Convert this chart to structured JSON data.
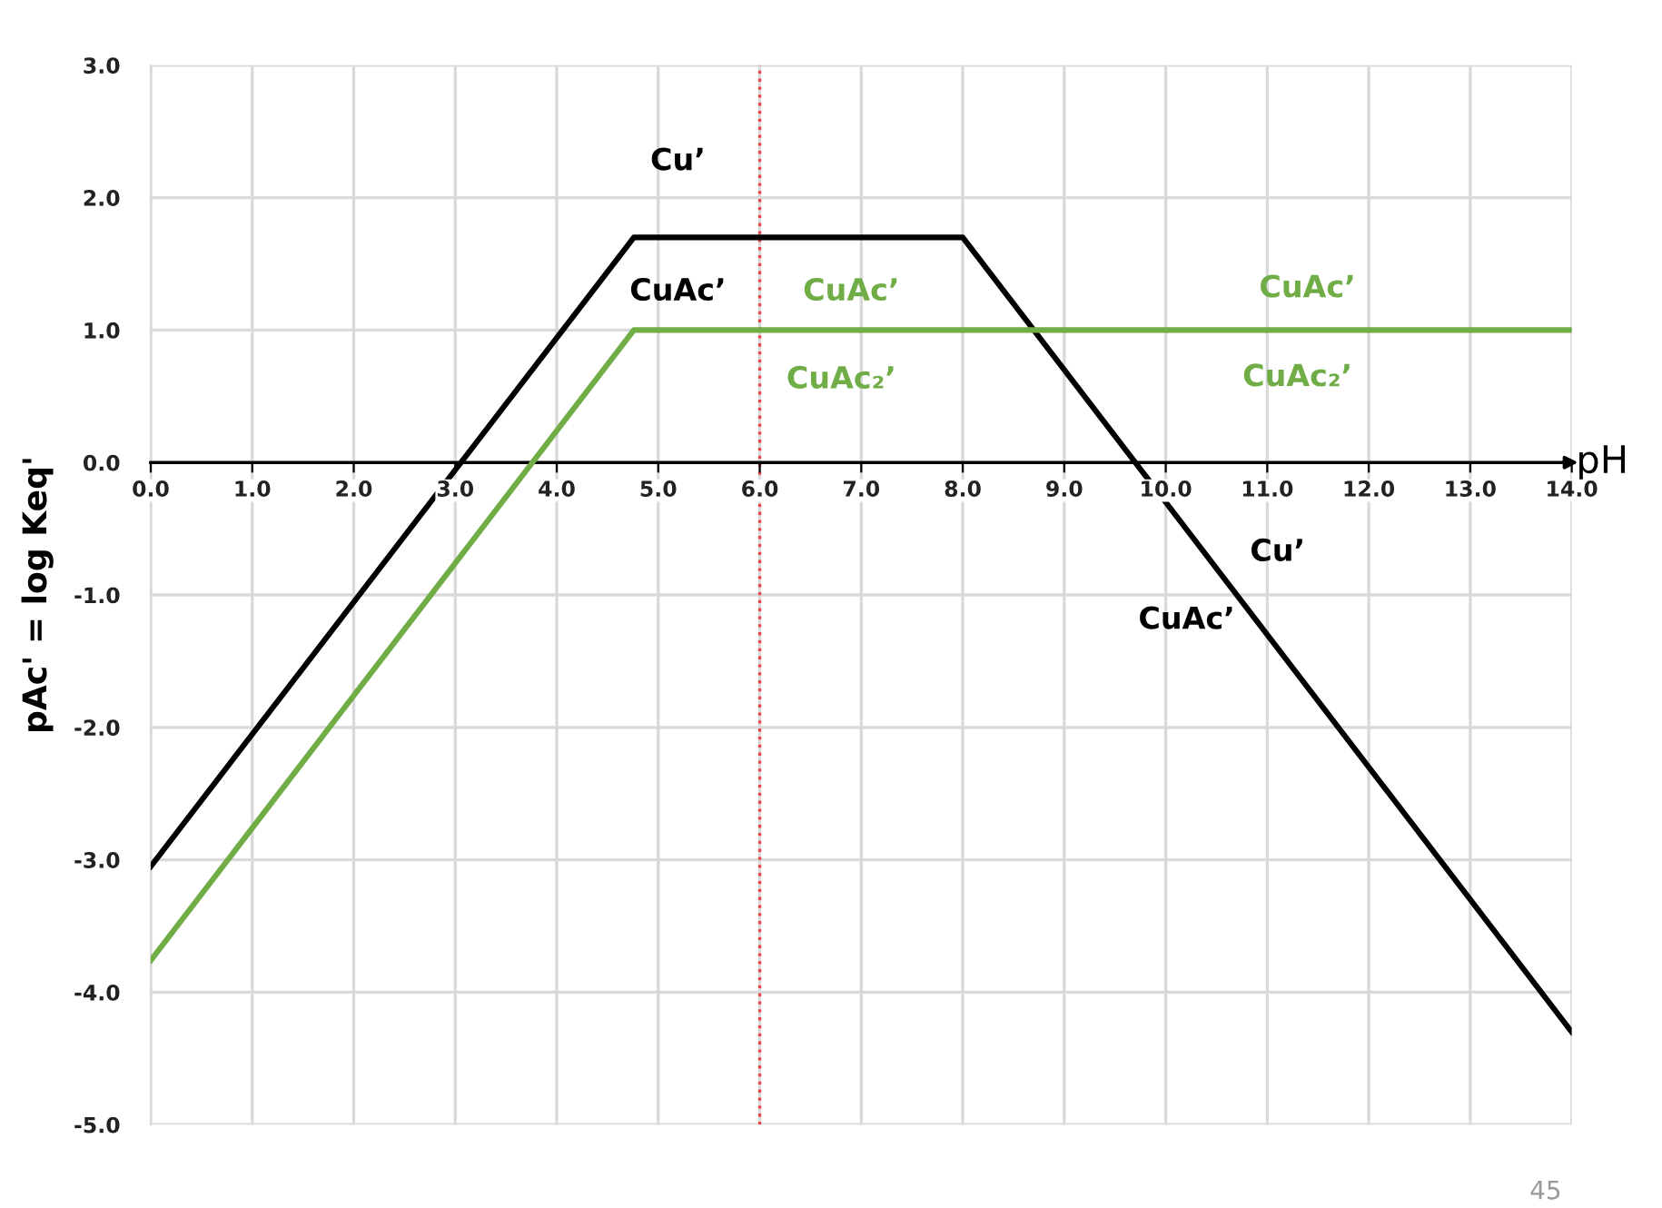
{
  "chart_data": {
    "type": "line",
    "xlabel": "pH",
    "ylabel": "pAc' = log Keq'",
    "series": [
      {
        "color": "#000000",
        "x": [
          0,
          4.76,
          8.0,
          14
        ],
        "values": [
          -3.05,
          1.7,
          1.7,
          -4.3
        ]
      },
      {
        "color": "#70ad47",
        "x": [
          0,
          4.76,
          14
        ],
        "values": [
          -3.76,
          1.0,
          1.0
        ]
      }
    ],
    "xlim": [
      0,
      14
    ],
    "xticks": [
      {
        "value": 0,
        "label": "0.0"
      },
      {
        "value": 1,
        "label": "1.0"
      },
      {
        "value": 2,
        "label": "2.0"
      },
      {
        "value": 3,
        "label": "3.0"
      },
      {
        "value": 4,
        "label": "4.0"
      },
      {
        "value": 5,
        "label": "5.0"
      },
      {
        "value": 6,
        "label": "6.0"
      },
      {
        "value": 7,
        "label": "7.0"
      },
      {
        "value": 8,
        "label": "8.0"
      },
      {
        "value": 9,
        "label": "9.0"
      },
      {
        "value": 10,
        "label": "10.0"
      },
      {
        "value": 11,
        "label": "11.0"
      },
      {
        "value": 12,
        "label": "12.0"
      },
      {
        "value": 13,
        "label": "13.0"
      },
      {
        "value": 14,
        "label": "14.0"
      }
    ],
    "ylim": [
      -5,
      3
    ],
    "yticks": [
      {
        "value": -5,
        "label": "-5.0"
      },
      {
        "value": -4,
        "label": "-4.0"
      },
      {
        "value": -3,
        "label": "-3.0"
      },
      {
        "value": -2,
        "label": "-2.0"
      },
      {
        "value": -1,
        "label": "-1.0"
      },
      {
        "value": 0,
        "label": "0.0"
      },
      {
        "value": 1,
        "label": "1.0"
      },
      {
        "value": 2,
        "label": "2.0"
      },
      {
        "value": 3,
        "label": "3.0"
      }
    ],
    "ref_lines": [
      {
        "axis": "x",
        "value": 6,
        "color": "#e8474a",
        "line_style": "dotted"
      }
    ],
    "annotations": [
      "Cu’",
      "CuAc’",
      "CuAc’",
      "CuAc₂’",
      "CuAc’",
      "CuAc₂’",
      "Cu’",
      "CuAc’",
      "45"
    ],
    "grid": true,
    "marker": "none",
    "line_style": "solid"
  }
}
